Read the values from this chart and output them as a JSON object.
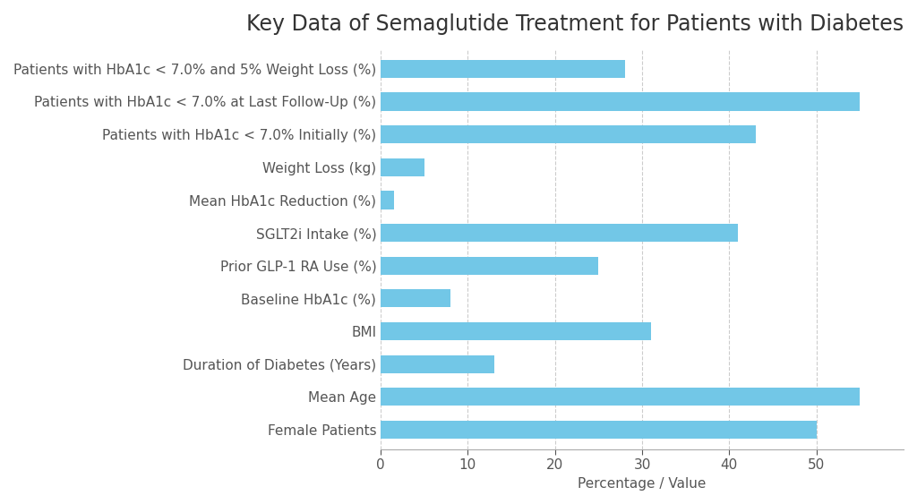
{
  "title": "Key Data of Semaglutide Treatment for Patients with Diabetes",
  "xlabel": "Percentage / Value",
  "categories": [
    "Female Patients",
    "Mean Age",
    "Duration of Diabetes (Years)",
    "BMI",
    "Baseline HbA1c (%)",
    "Prior GLP-1 RA Use (%)",
    "SGLT2i Intake (%)",
    "Mean HbA1c Reduction (%)",
    "Weight Loss (kg)",
    "Patients with HbA1c < 7.0% Initially (%)",
    "Patients with HbA1c < 7.0% at Last Follow-Up (%)",
    "Patients with HbA1c < 7.0% and 5% Weight Loss (%)"
  ],
  "values": [
    50,
    55,
    13,
    31,
    8,
    25,
    41,
    1.5,
    5,
    43,
    55,
    28
  ],
  "bar_color": "#72C7E7",
  "background_color": "#ffffff",
  "title_color": "#333333",
  "label_color": "#555555",
  "xlim": [
    0,
    60
  ],
  "xticks": [
    0,
    10,
    20,
    30,
    40,
    50
  ],
  "title_fontsize": 17,
  "label_fontsize": 11,
  "axis_fontsize": 11,
  "bar_height": 0.55
}
